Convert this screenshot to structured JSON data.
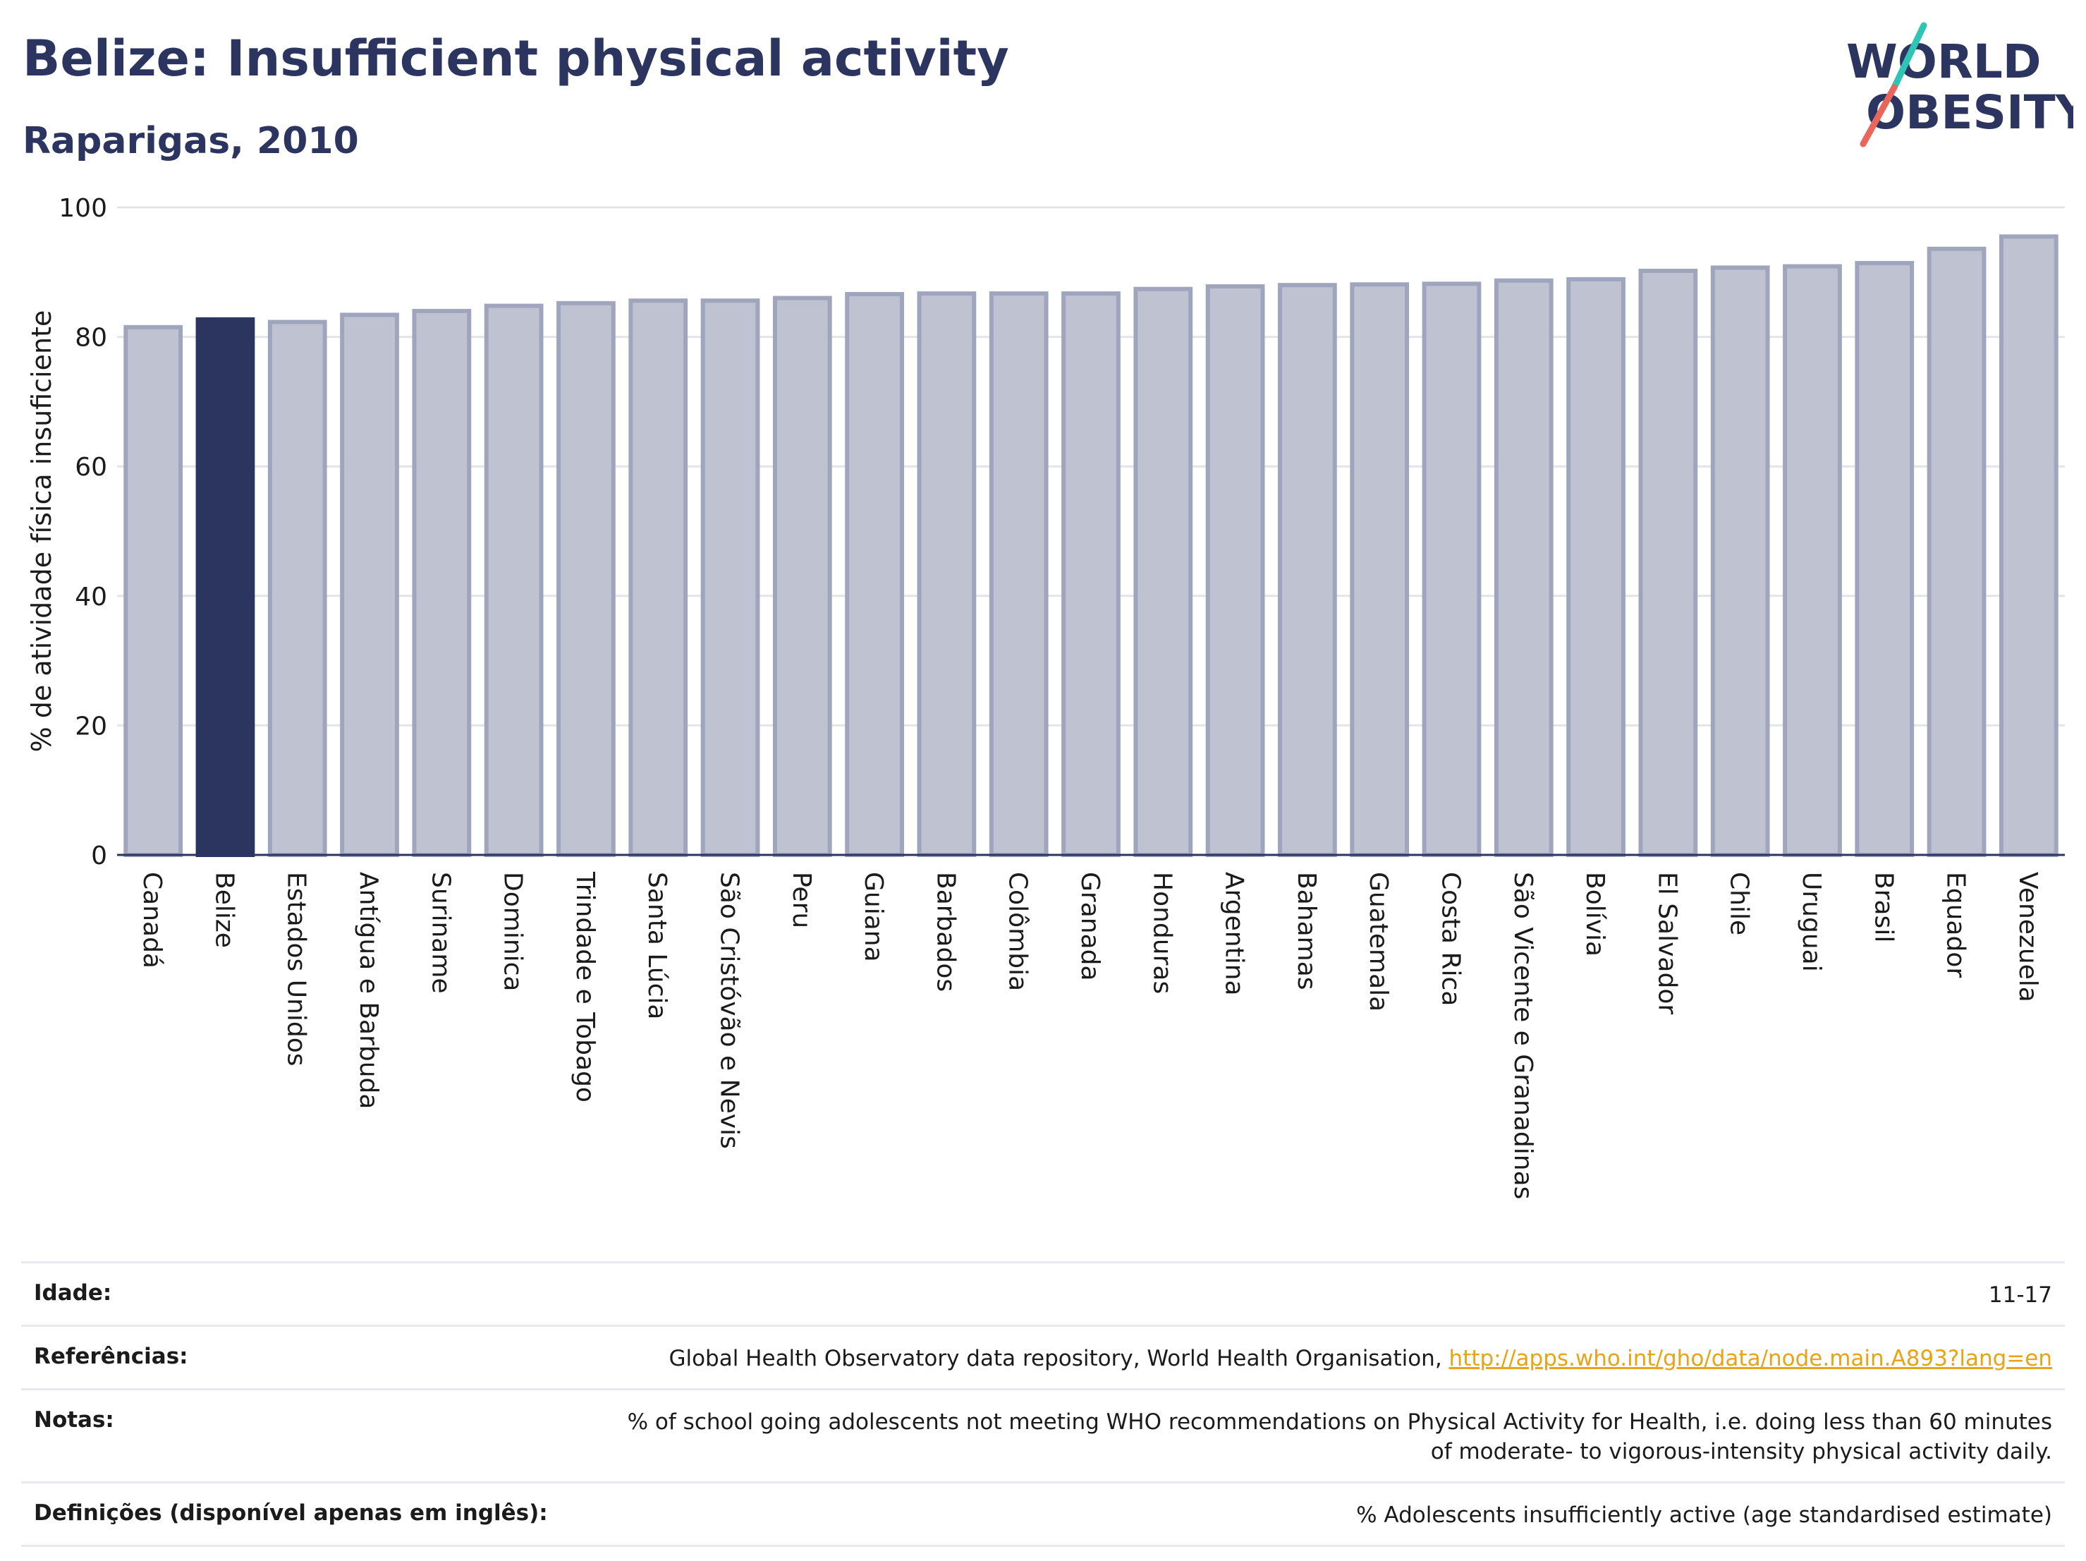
{
  "header": {
    "title": "Belize: Insufficient physical activity",
    "subtitle": "Raparigas, 2010"
  },
  "logo": {
    "line1": "WORLD",
    "line2": "OBESITY",
    "colors": {
      "text": "#2b3560",
      "slash_teal": "#2ec4b6",
      "slash_red": "#e8665a"
    }
  },
  "colors": {
    "bar": "#bfc2d0",
    "bar_outline": "#9fa5bd",
    "highlight": "#2b3560",
    "grid": "#e3e4ea",
    "axis": "#2b3560"
  },
  "chart_data": {
    "type": "bar",
    "ylabel": "% de atividade física insuficiente",
    "ylim": [
      0,
      100
    ],
    "yticks": [
      0,
      20,
      40,
      60,
      80,
      100
    ],
    "grid": true,
    "highlight": "Belize",
    "categories": [
      "Canadá",
      "Belize",
      "Estados Unidos",
      "Antígua e Barbuda",
      "Suriname",
      "Dominica",
      "Trindade e Tobago",
      "Santa Lúcia",
      "São Cristóvão e Nevis",
      "Peru",
      "Guiana",
      "Barbados",
      "Colômbia",
      "Granada",
      "Honduras",
      "Argentina",
      "Bahamas",
      "Guatemala",
      "Costa Rica",
      "São Vicente e Granadinas",
      "Bolívia",
      "El Salvador",
      "Chile",
      "Uruguai",
      "Brasil",
      "Equador",
      "Venezuela"
    ],
    "values": [
      81.5,
      82.7,
      82.3,
      83.4,
      84.0,
      84.8,
      85.2,
      85.6,
      85.6,
      86.0,
      86.6,
      86.7,
      86.7,
      86.7,
      87.4,
      87.8,
      88.0,
      88.1,
      88.2,
      88.7,
      88.9,
      90.2,
      90.7,
      90.9,
      91.4,
      93.6,
      95.5
    ]
  },
  "footer": {
    "rows": [
      {
        "label": "Idade:",
        "value": "11-17"
      },
      {
        "label": "Referências:",
        "value": "Global Health Observatory data repository, World Health Organisation, ",
        "link": "http://apps.who.int/gho/data/node.main.A893?lang=en"
      },
      {
        "label": "Notas:",
        "value": "% of school going adolescents not meeting WHO recommendations on Physical Activity for Health, i.e. doing less than 60 minutes of moderate- to vigorous-intensity physical activity daily."
      },
      {
        "label": "Definições (disponível apenas em inglês):",
        "value": "% Adolescents insufficiently active (age standardised estimate)"
      }
    ]
  }
}
